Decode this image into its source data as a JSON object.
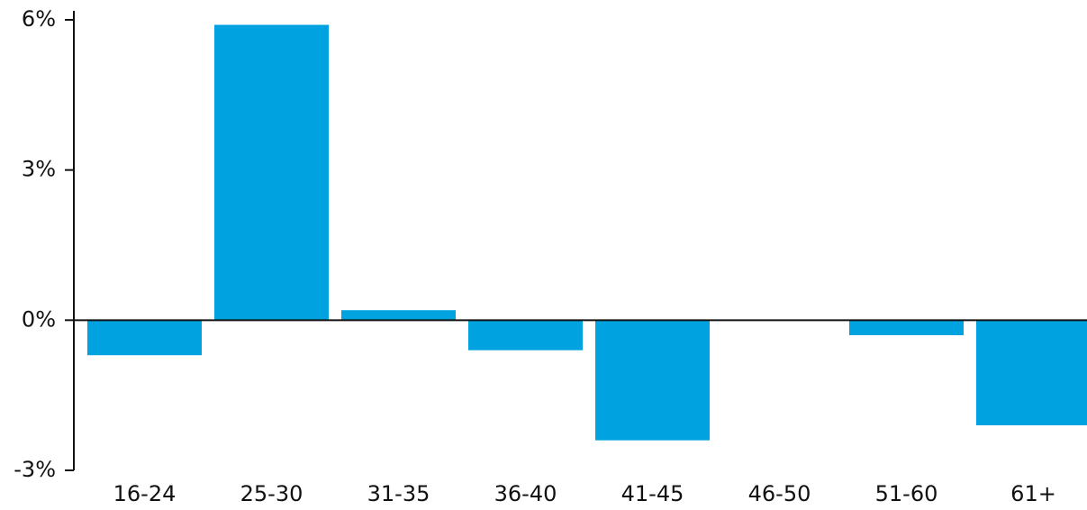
{
  "chart_data": {
    "type": "bar",
    "categories": [
      "16-24",
      "25-30",
      "31-35",
      "36-40",
      "41-45",
      "46-50",
      "51-60",
      "61+"
    ],
    "values": [
      -0.7,
      5.9,
      0.2,
      -0.6,
      -2.4,
      0,
      -0.3,
      -2.1
    ],
    "color": "#00a3e0",
    "ylim": [
      -3,
      6
    ],
    "yticks": [
      {
        "value": -3,
        "label": "-3%"
      },
      {
        "value": 0,
        "label": "0%"
      },
      {
        "value": 3,
        "label": "3%"
      },
      {
        "value": 6,
        "label": "6%"
      }
    ],
    "grid": false
  }
}
